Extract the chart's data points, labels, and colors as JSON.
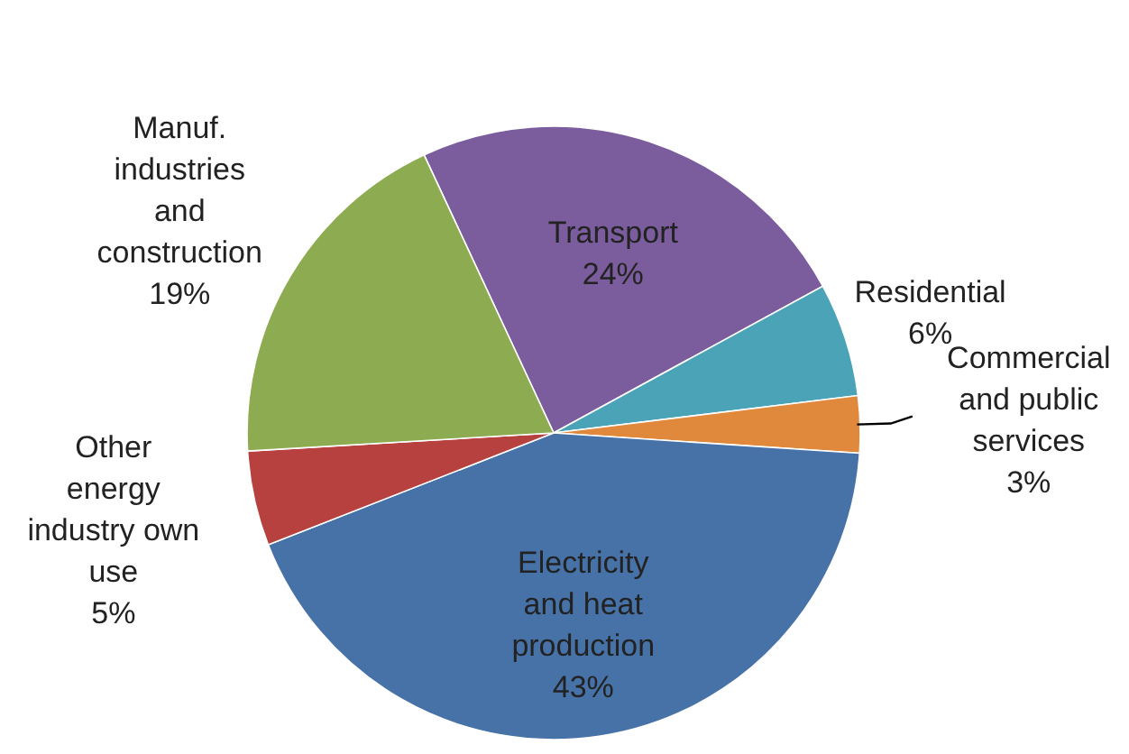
{
  "chart_data": {
    "type": "pie",
    "categories": [
      "Transport",
      "Residential",
      "Commercial\nand public\nservices",
      "Electricity\nand heat\nproduction",
      "Other\nenergy\nindustry own\nuse",
      "Manuf.\nindustries\nand\nconstruction"
    ],
    "values": [
      24,
      6,
      3,
      43,
      5,
      19
    ],
    "value_labels": [
      "24%",
      "6%",
      "3%",
      "43%",
      "5%",
      "19%"
    ],
    "colors": [
      "#7b5d9e",
      "#4aa3b7",
      "#e0893c",
      "#4772a8",
      "#b7413e",
      "#8dab50"
    ]
  }
}
